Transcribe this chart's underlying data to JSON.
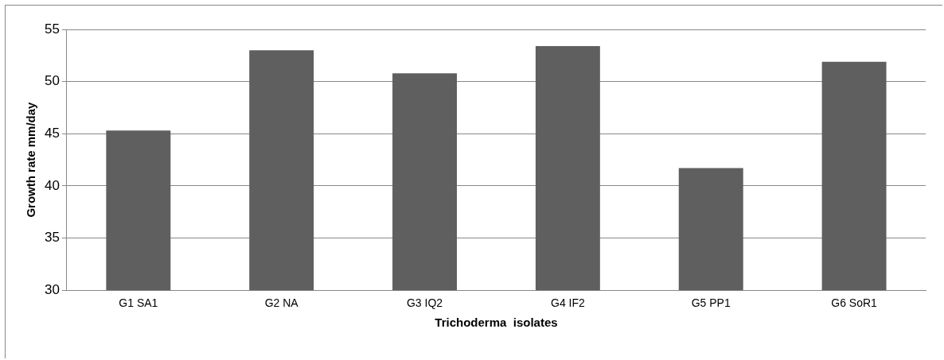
{
  "chart_data": {
    "type": "bar",
    "xlabel": "Trichoderma  isolates",
    "ylabel": "Growth rate mm/day",
    "categories": [
      "G1 SA1",
      "G2 NA",
      "G3 IQ2",
      "G4 IF2",
      "G5 PP1",
      "G6 SoR1"
    ],
    "values": [
      45.3,
      53.0,
      50.8,
      53.4,
      41.7,
      51.9
    ],
    "color": "#5f5f5f",
    "ylim": [
      30,
      55
    ],
    "yticks": [
      30,
      35,
      40,
      45,
      50,
      55
    ],
    "grid": "y"
  }
}
